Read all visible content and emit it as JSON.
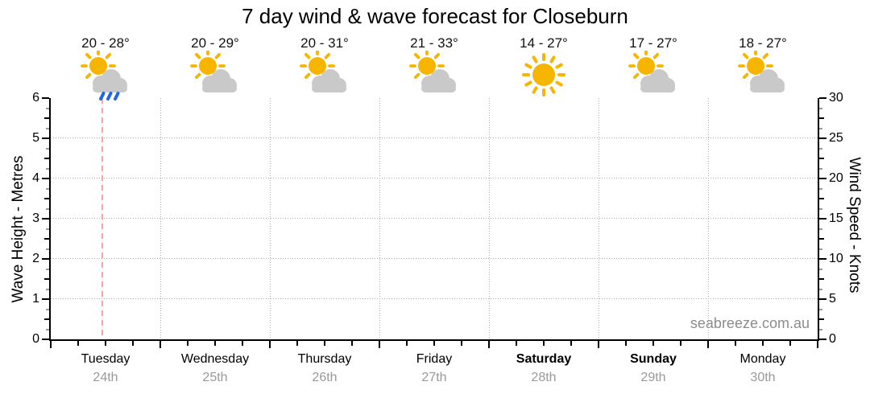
{
  "chart_data": {
    "type": "line",
    "title": "7 day wind & wave forecast for Closeburn",
    "watermark": "seabreeze.com.au",
    "series": [],
    "grid": true,
    "left_axis": {
      "label": "Wave Height - Metres",
      "min": 0,
      "max": 6,
      "ticks": [
        0,
        1,
        2,
        3,
        4,
        5,
        6
      ],
      "minor_step": 0.25
    },
    "right_axis": {
      "label": "Wind Speed - Knots",
      "min": 0,
      "max": 30,
      "ticks": [
        0,
        5,
        10,
        15,
        20,
        25,
        30
      ],
      "minor_step": 1.25
    },
    "x_axis": {
      "minor_ticks_per_day": 4
    },
    "now_marker": {
      "day_index": 0,
      "day_fraction": 0.46
    },
    "days": [
      {
        "name": "Tuesday",
        "date": "24th",
        "temp": "20 - 28°",
        "icon": "sun-cloud-rain",
        "bold": false
      },
      {
        "name": "Wednesday",
        "date": "25th",
        "temp": "20 - 29°",
        "icon": "sun-cloud",
        "bold": false
      },
      {
        "name": "Thursday",
        "date": "26th",
        "temp": "20 - 31°",
        "icon": "sun-cloud",
        "bold": false
      },
      {
        "name": "Friday",
        "date": "27th",
        "temp": "21 - 33°",
        "icon": "sun-cloud",
        "bold": false
      },
      {
        "name": "Saturday",
        "date": "28th",
        "temp": "14 - 27°",
        "icon": "sun",
        "bold": true
      },
      {
        "name": "Sunday",
        "date": "29th",
        "temp": "17 - 27°",
        "icon": "sun-cloud",
        "bold": true
      },
      {
        "name": "Monday",
        "date": "30th",
        "temp": "18 - 27°",
        "icon": "sun-cloud",
        "bold": false
      }
    ],
    "colors": {
      "sun": "#f8b500",
      "cloud": "#c9c9c9",
      "rain": "#2465e0",
      "grid": "#aaaaaa",
      "now_line": "#f2a6a6",
      "date_text": "#999999",
      "watermark": "#8c8c8c",
      "text": "#000000"
    }
  }
}
